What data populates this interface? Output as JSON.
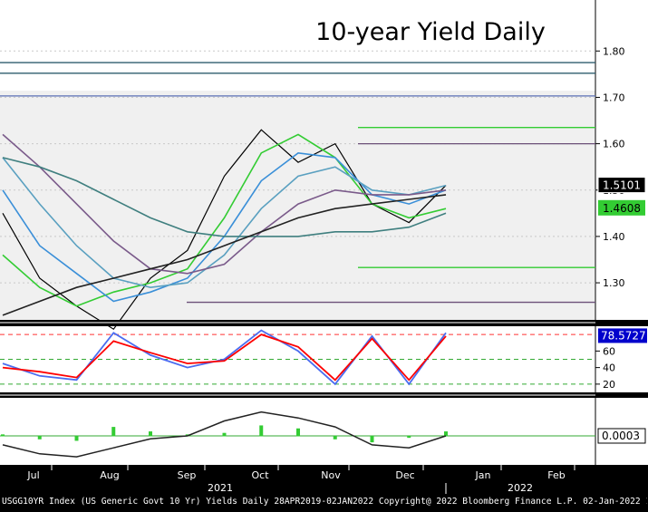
{
  "chart_data": [
    {
      "type": "line",
      "panel": "price",
      "title": "10-year Yield Daily",
      "ylim": [
        1.22,
        1.91
      ],
      "yticks": [
        1.8,
        1.7,
        1.6,
        1.5,
        1.4,
        1.3
      ],
      "ytick_labels": [
        "1.80",
        "1.70",
        "1.60",
        "1.50",
        "1.40",
        "1.30"
      ],
      "last_price_label": "1.5101",
      "ma_label": "1.4608",
      "horizontal_levels": [
        {
          "value": 1.775,
          "color": "#2e5d6e"
        },
        {
          "value": 1.752,
          "color": "#2e5d6e"
        },
        {
          "value": 1.703,
          "color": "#5a6fb5"
        },
        {
          "value": 1.635,
          "color": "#33cc33",
          "from_month": "Nov"
        },
        {
          "value": 1.6,
          "color": "#6b5078",
          "from_month": "Nov"
        },
        {
          "value": 1.333,
          "color": "#33cc33",
          "from_month": "Nov"
        },
        {
          "value": 1.258,
          "color": "#6b5078",
          "from_month": "Sep"
        }
      ],
      "x": [
        "Jul 1",
        "Jul 15",
        "Aug 1",
        "Aug 15",
        "Sep 1",
        "Sep 15",
        "Oct 1",
        "Oct 15",
        "Nov 1",
        "Nov 15",
        "Dec 1",
        "Dec 15",
        "Dec 31"
      ],
      "series": [
        {
          "color": "#000000",
          "values": [
            1.45,
            1.31,
            1.25,
            1.2,
            1.31,
            1.37,
            1.53,
            1.63,
            1.56,
            1.6,
            1.47,
            1.43,
            1.51
          ]
        },
        {
          "color": "#33cc33",
          "values": [
            1.36,
            1.29,
            1.25,
            1.28,
            1.3,
            1.33,
            1.44,
            1.58,
            1.62,
            1.57,
            1.47,
            1.44,
            1.46
          ]
        },
        {
          "color": "#3a8fd8",
          "values": [
            1.5,
            1.38,
            1.32,
            1.26,
            1.28,
            1.31,
            1.4,
            1.52,
            1.58,
            1.57,
            1.49,
            1.47,
            1.5
          ]
        },
        {
          "color": "#5aa0c0",
          "values": [
            1.57,
            1.47,
            1.38,
            1.31,
            1.29,
            1.3,
            1.36,
            1.46,
            1.53,
            1.55,
            1.5,
            1.49,
            1.51
          ]
        },
        {
          "color": "#7a5a8a",
          "values": [
            1.62,
            1.55,
            1.47,
            1.39,
            1.33,
            1.32,
            1.34,
            1.41,
            1.47,
            1.5,
            1.49,
            1.49,
            1.5
          ]
        },
        {
          "color": "#3f7f7f",
          "values": [
            1.57,
            1.55,
            1.52,
            1.48,
            1.44,
            1.41,
            1.4,
            1.4,
            1.4,
            1.41,
            1.41,
            1.42,
            1.45
          ]
        },
        {
          "color": "#222222",
          "values": [
            1.23,
            1.26,
            1.29,
            1.31,
            1.33,
            1.35,
            1.38,
            1.41,
            1.44,
            1.46,
            1.47,
            1.48,
            1.49
          ]
        }
      ]
    },
    {
      "type": "line",
      "panel": "stochastic",
      "ylim": [
        10,
        90
      ],
      "yticks": [
        60,
        40,
        20
      ],
      "ytick_labels": [
        "60",
        "40",
        "20"
      ],
      "last_value_label": "78.5727",
      "reference_levels": [
        80,
        50,
        20
      ],
      "x": [
        "Jul 1",
        "Jul 15",
        "Aug 1",
        "Aug 15",
        "Sep 1",
        "Sep 15",
        "Oct 1",
        "Oct 15",
        "Nov 1",
        "Nov 15",
        "Dec 1",
        "Dec 15",
        "Dec 31"
      ],
      "series": [
        {
          "color": "#4a6cf0",
          "values": [
            45,
            30,
            25,
            82,
            55,
            40,
            50,
            85,
            60,
            20,
            78,
            20,
            82
          ]
        },
        {
          "color": "#ff0000",
          "values": [
            40,
            35,
            28,
            72,
            58,
            45,
            48,
            80,
            65,
            25,
            75,
            25,
            78
          ]
        }
      ]
    },
    {
      "type": "bar",
      "panel": "oscillator",
      "ylim": [
        -1,
        1
      ],
      "last_value_label": "0.0003",
      "x": [
        "Jul 1",
        "Jul 15",
        "Aug 1",
        "Aug 15",
        "Sep 1",
        "Sep 15",
        "Oct 1",
        "Oct 15",
        "Nov 1",
        "Nov 15",
        "Dec 1",
        "Dec 15",
        "Dec 31"
      ],
      "series": [
        {
          "color": "#33cc33",
          "values": [
            0.05,
            -0.1,
            -0.15,
            0.3,
            0.15,
            0.05,
            0.1,
            0.35,
            0.25,
            -0.1,
            -0.2,
            -0.05,
            0.15
          ]
        },
        {
          "color": "#222222",
          "values": [
            -0.3,
            -0.6,
            -0.7,
            -0.4,
            -0.1,
            0.0,
            0.5,
            0.8,
            0.6,
            0.3,
            -0.3,
            -0.4,
            0.0
          ]
        }
      ]
    }
  ],
  "x_axis": {
    "months": [
      "Jul",
      "Aug",
      "Sep",
      "Oct",
      "Nov",
      "Dec",
      "Jan",
      "Feb"
    ],
    "years": [
      "2021",
      "2022"
    ]
  },
  "footer": {
    "text": "USGG10YR Index (US Generic Govt 10 Yr) Yields  Daily 28APR2019-02JAN2022  Copyright@ 2022 Bloomberg Finance L.P. 02-Jan-2022 11:57:07"
  }
}
